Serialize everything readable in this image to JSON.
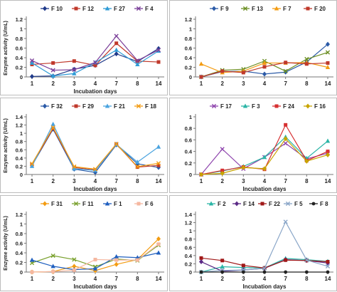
{
  "colors": {
    "F 10": "#1f3a8a",
    "F 12": "#c0392b",
    "F 27": "#2e9bd6",
    "F 4": "#7b3f99",
    "F 9": "#2b5aa7",
    "F 13": "#6b8e23",
    "F 7": "#f39c12",
    "F 20": "#c0392b",
    "F 32": "#2b5aa7",
    "F 29": "#c0392b",
    "F 21": "#4aa3df",
    "F 18": "#f39c12",
    "F 17": "#8e44ad",
    "F 3": "#2bb5a6",
    "F 24": "#d63031",
    "F 16": "#c8a400",
    "F 31": "#f39c12",
    "F 11": "#7aa12e",
    "F 1": "#1f5fbf",
    "F 6": "#f5b7a0",
    "F 2": "#2bb5a6",
    "F 14": "#5b2a86",
    "F 22": "#a01818",
    "F 5": "#8aa6c8",
    "F 8": "#222222"
  },
  "chart_data": [
    {
      "type": "line",
      "xlabel": "Incubation days",
      "ylabel": "Enzyme activity (U/mL)",
      "categories": [
        "1",
        "2",
        "3",
        "4",
        "7",
        "8",
        "14"
      ],
      "ylim": [
        0,
        1.2
      ],
      "yticks": [
        "0",
        "0.2",
        "0.4",
        "0.6",
        "0.8",
        "1",
        "1.2"
      ],
      "grid": false,
      "legend_position": "top-right",
      "series": [
        {
          "name": "F 10",
          "marker": "diamond",
          "values": [
            0.01,
            0.02,
            0.16,
            0.24,
            0.48,
            0.32,
            0.59
          ]
        },
        {
          "name": "F 12",
          "marker": "square",
          "values": [
            0.26,
            0.29,
            0.33,
            0.24,
            0.7,
            0.33,
            0.31
          ]
        },
        {
          "name": "F 27",
          "marker": "triangle",
          "values": [
            0.29,
            0.02,
            0.07,
            0.3,
            0.56,
            0.26,
            0.54
          ]
        },
        {
          "name": "F 4",
          "marker": "x",
          "values": [
            0.34,
            0.14,
            0.15,
            0.3,
            0.85,
            0.34,
            0.56
          ]
        }
      ]
    },
    {
      "type": "line",
      "xlabel": "",
      "ylabel": "",
      "categories": [
        "1",
        "2",
        "3",
        "4",
        "7",
        "8",
        "14"
      ],
      "ylim": [
        0,
        1.2
      ],
      "yticks": [
        "0",
        "0.2",
        "0.4",
        "0.6",
        "0.8",
        "1",
        "1.2"
      ],
      "grid": false,
      "legend_position": "top-right",
      "series": [
        {
          "name": "F 9",
          "marker": "diamond",
          "values": [
            0.0,
            0.11,
            0.12,
            0.06,
            0.1,
            0.31,
            0.68
          ]
        },
        {
          "name": "F 13",
          "marker": "x",
          "values": [
            0.0,
            0.14,
            0.16,
            0.33,
            0.12,
            0.37,
            0.51
          ]
        },
        {
          "name": "F 7",
          "marker": "triangle",
          "values": [
            0.27,
            0.09,
            0.12,
            0.29,
            0.29,
            0.3,
            0.2
          ]
        },
        {
          "name": "F 20",
          "marker": "square",
          "values": [
            0.0,
            0.12,
            0.09,
            0.21,
            0.3,
            0.27,
            0.29
          ]
        }
      ]
    },
    {
      "type": "line",
      "xlabel": "Incubation days",
      "ylabel": "Enzyme activity (U/mL)",
      "categories": [
        "1",
        "2",
        "3",
        "4",
        "7",
        "8",
        "14"
      ],
      "ylim": [
        0,
        1.4
      ],
      "yticks": [
        "0",
        "0.2",
        "0.4",
        "0.6",
        "0.8",
        "1",
        "1.2",
        "1.4"
      ],
      "grid": false,
      "legend_position": "top-right",
      "series": [
        {
          "name": "F 32",
          "marker": "diamond",
          "values": [
            0.22,
            1.1,
            0.13,
            0.05,
            0.72,
            0.26,
            0.17
          ]
        },
        {
          "name": "F 29",
          "marker": "square",
          "values": [
            0.24,
            1.12,
            0.17,
            0.11,
            0.74,
            0.18,
            0.22
          ]
        },
        {
          "name": "F 21",
          "marker": "triangle",
          "values": [
            0.2,
            1.22,
            0.14,
            0.1,
            0.73,
            0.3,
            0.67
          ]
        },
        {
          "name": "F 18",
          "marker": "x",
          "values": [
            0.26,
            1.14,
            0.19,
            0.13,
            0.74,
            0.19,
            0.27
          ]
        }
      ]
    },
    {
      "type": "line",
      "xlabel": "Incubation days",
      "ylabel": "",
      "categories": [
        "1",
        "2",
        "3",
        "4",
        "7",
        "8",
        "14"
      ],
      "ylim": [
        0,
        1.0
      ],
      "yticks": [
        "0",
        "0.2",
        "0.4",
        "0.6",
        "0.8",
        "1"
      ],
      "grid": false,
      "legend_position": "top-right",
      "series": [
        {
          "name": "F 17",
          "marker": "x",
          "values": [
            0.0,
            0.44,
            0.1,
            0.3,
            0.54,
            0.27,
            0.37
          ]
        },
        {
          "name": "F 3",
          "marker": "triangle",
          "values": [
            0.0,
            0.06,
            0.14,
            0.3,
            0.65,
            0.28,
            0.58
          ]
        },
        {
          "name": "F 24",
          "marker": "square",
          "values": [
            0.0,
            0.07,
            0.13,
            0.09,
            0.86,
            0.24,
            0.4
          ]
        },
        {
          "name": "F 16",
          "marker": "diamond",
          "values": [
            0.0,
            0.02,
            0.12,
            0.1,
            0.62,
            0.23,
            0.34
          ]
        }
      ]
    },
    {
      "type": "line",
      "xlabel": "Incubation days",
      "ylabel": "Enzyme activity (U/mL)",
      "categories": [
        "1",
        "2",
        "3",
        "4",
        "7",
        "8",
        "14"
      ],
      "ylim": [
        0,
        1.2
      ],
      "yticks": [
        "0",
        "0.2",
        "0.4",
        "0.6",
        "0.8",
        "1",
        "1.2"
      ],
      "grid": false,
      "legend_position": "top-right",
      "series": [
        {
          "name": "F 31",
          "marker": "diamond",
          "values": [
            0.0,
            0.01,
            0.12,
            0.03,
            0.16,
            0.26,
            0.69
          ]
        },
        {
          "name": "F 11",
          "marker": "x",
          "values": [
            0.19,
            0.34,
            0.26,
            0.11,
            0.27,
            0.24,
            0.56
          ]
        },
        {
          "name": "F 1",
          "marker": "triangle",
          "values": [
            0.25,
            0.12,
            0.05,
            0.07,
            0.32,
            0.3,
            0.4
          ]
        },
        {
          "name": "F 6",
          "marker": "square",
          "values": [
            0.0,
            0.01,
            0.04,
            0.26,
            0.25,
            0.25,
            0.58
          ]
        }
      ]
    },
    {
      "type": "line",
      "xlabel": "Incubation days",
      "ylabel": "",
      "categories": [
        "1",
        "2",
        "3",
        "4",
        "7",
        "8",
        "14"
      ],
      "ylim": [
        0,
        1.4
      ],
      "yticks": [
        "0",
        "0.2",
        "0.4",
        "0.6",
        "0.8",
        "1",
        "1.2",
        "1.4"
      ],
      "grid": false,
      "legend_position": "top-right",
      "series": [
        {
          "name": "F 2",
          "marker": "triangle",
          "values": [
            0.0,
            0.13,
            0.11,
            0.1,
            0.33,
            0.3,
            0.26
          ]
        },
        {
          "name": "F 14",
          "marker": "diamond",
          "values": [
            0.25,
            0.02,
            0.05,
            0.09,
            0.3,
            0.28,
            0.22
          ]
        },
        {
          "name": "F 22",
          "marker": "square",
          "values": [
            0.34,
            0.28,
            0.16,
            0.1,
            0.29,
            0.28,
            0.25
          ]
        },
        {
          "name": "F 5",
          "marker": "x",
          "values": [
            0.0,
            0.04,
            0.05,
            0.09,
            1.22,
            0.29,
            0.14
          ]
        },
        {
          "name": "F 8",
          "marker": "circle",
          "values": [
            0.0,
            0.0,
            0.0,
            0.0,
            0.0,
            0.0,
            0.0
          ]
        }
      ]
    }
  ]
}
